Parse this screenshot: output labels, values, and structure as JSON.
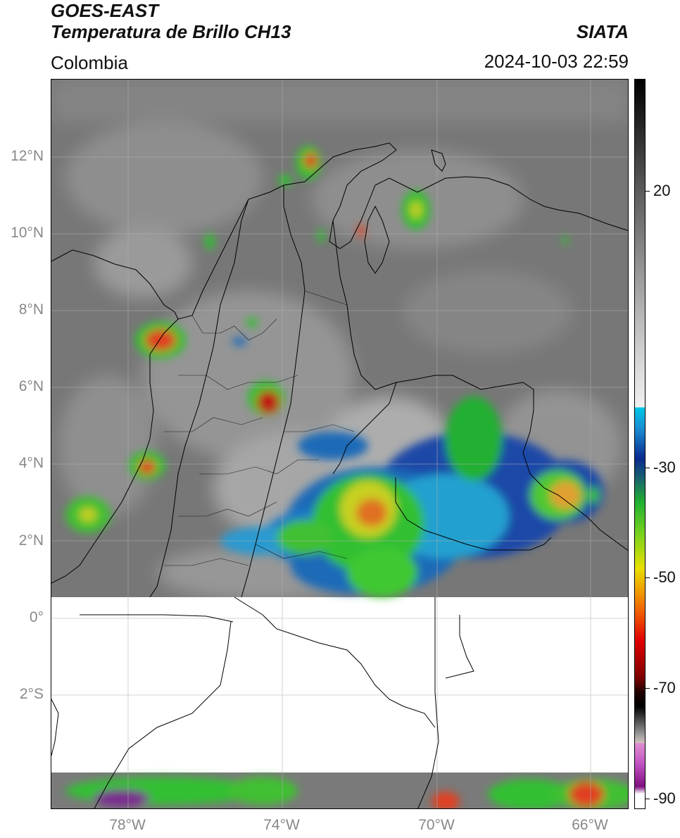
{
  "header": {
    "satellite": "GOES-EAST",
    "product": "Temperatura de Brillo CH13",
    "region": "Colombia",
    "organization": "SIATA",
    "datetime": "2024-10-03 22:59"
  },
  "map": {
    "lat_labels": [
      "12°N",
      "10°N",
      "8°N",
      "6°N",
      "4°N",
      "2°N",
      "0°",
      "2°S"
    ],
    "lon_labels": [
      "78°W",
      "74°W",
      "70°W",
      "66°W"
    ]
  },
  "colorbar": {
    "ticks": [
      "20",
      "-30",
      "-50",
      "-70",
      "-90"
    ]
  }
}
